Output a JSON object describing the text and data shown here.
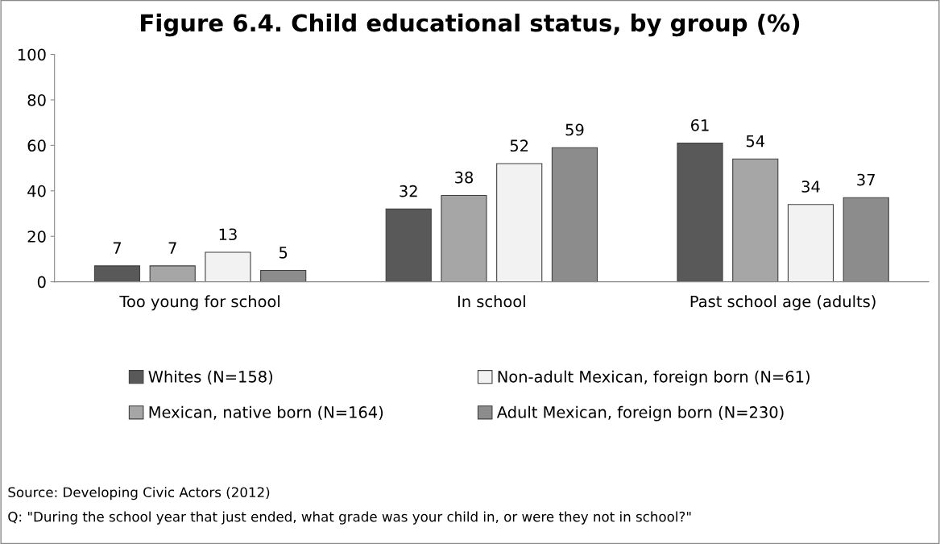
{
  "chart_data": {
    "type": "bar",
    "title": "Figure 6.4. Child educational status, by group (%)",
    "categories": [
      "Too young for school",
      "In school",
      "Past school age (adults)"
    ],
    "series": [
      {
        "name": "Whites (N=158)",
        "color": "#595959",
        "values": [
          7,
          32,
          61
        ]
      },
      {
        "name": "Mexican, native born (N=164)",
        "color": "#a6a6a6",
        "values": [
          7,
          38,
          54
        ]
      },
      {
        "name": "Non-adult Mexican, foreign born (N=61)",
        "color": "#f2f2f2",
        "values": [
          13,
          52,
          34
        ]
      },
      {
        "name": "Adult Mexican, foreign born (N=230)",
        "color": "#8c8c8c",
        "values": [
          5,
          59,
          37
        ]
      }
    ],
    "ylim": [
      0,
      100
    ],
    "yticks": [
      0,
      20,
      40,
      60,
      80,
      100
    ],
    "grid": false,
    "legend": "bottom",
    "data_labels": true,
    "annotations": [
      "Source: Developing Civic Actors (2012)",
      "Q: \"During the school year that just ended, what grade was your child in, or were they not in school?\""
    ]
  }
}
